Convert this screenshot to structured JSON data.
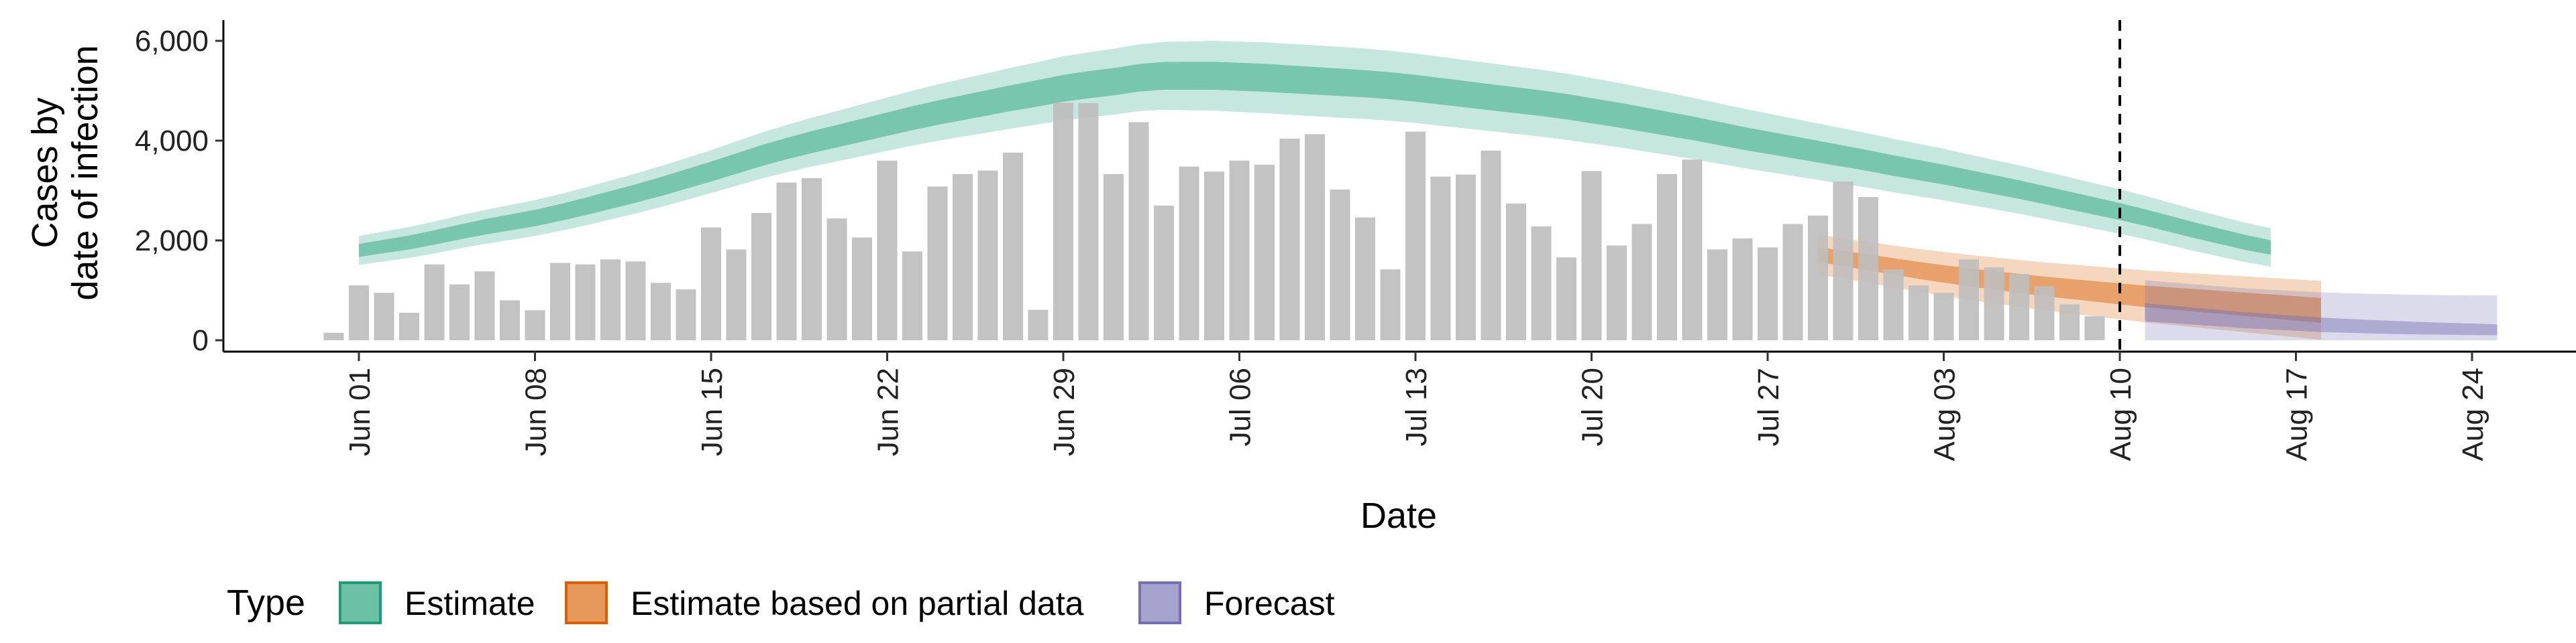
{
  "chart_data": {
    "type": "bar",
    "xlabel": "Date",
    "ylabel_lines": [
      "Cases by",
      "date of infection"
    ],
    "ylim": [
      0,
      6400
    ],
    "yticks": [
      0,
      2000,
      4000,
      6000
    ],
    "ytick_labels": [
      "0",
      "2,000",
      "4,000",
      "6,000"
    ],
    "x_range": [
      "2021-05-28",
      "2021-08-27"
    ],
    "xticks": [
      "2021-06-01",
      "2021-06-08",
      "2021-06-15",
      "2021-06-22",
      "2021-06-29",
      "2021-07-06",
      "2021-07-13",
      "2021-07-20",
      "2021-07-27",
      "2021-08-03",
      "2021-08-10",
      "2021-08-17",
      "2021-08-24"
    ],
    "xtick_labels": [
      "Jun 01",
      "Jun 08",
      "Jun 15",
      "Jun 22",
      "Jun 29",
      "Jul 06",
      "Jul 13",
      "Jul 20",
      "Jul 27",
      "Aug 03",
      "Aug 10",
      "Aug 17",
      "Aug 24"
    ],
    "vline_date": "2021-08-10",
    "bar_start_date": "2021-05-31",
    "bar_color": "#bebebe",
    "bars": [
      150,
      1100,
      950,
      550,
      1520,
      1120,
      1380,
      800,
      600,
      1550,
      1520,
      1620,
      1580,
      1150,
      1020,
      2260,
      1820,
      2550,
      3160,
      3250,
      2440,
      2060,
      3600,
      1780,
      3080,
      3330,
      3400,
      3760,
      610,
      4760,
      4750,
      3330,
      4370,
      2700,
      3480,
      3380,
      3600,
      3520,
      4040,
      4130,
      3020,
      2460,
      1420,
      4180,
      3280,
      3320,
      3800,
      2740,
      2280,
      1660,
      3390,
      1900,
      2330,
      3330,
      3620,
      1820,
      2040,
      1860,
      2330,
      2500,
      3180,
      2870,
      1420,
      1100,
      950,
      1620,
      1460,
      1330,
      1080,
      720,
      480
    ],
    "legend_title": "Type",
    "legend_position": "bottom",
    "series": [
      {
        "name": "Estimate",
        "color": "#1b9e77",
        "start_date": "2021-06-01",
        "median": [
          1800,
          1880,
          1960,
          2060,
          2170,
          2270,
          2360,
          2450,
          2560,
          2680,
          2810,
          2940,
          3080,
          3230,
          3380,
          3540,
          3700,
          3840,
          3970,
          4090,
          4210,
          4330,
          4450,
          4560,
          4660,
          4760,
          4860,
          4950,
          5050,
          5120,
          5180,
          5260,
          5300,
          5300,
          5300,
          5280,
          5260,
          5230,
          5200,
          5170,
          5140,
          5100,
          5050,
          4990,
          4930,
          4870,
          4810,
          4750,
          4680,
          4600,
          4520,
          4430,
          4340,
          4250,
          4150,
          4050,
          3960,
          3870,
          3780,
          3690,
          3600,
          3500,
          3410,
          3320,
          3220,
          3120,
          3020,
          2910,
          2800,
          2690,
          2580,
          2460,
          2330,
          2200,
          2080,
          1960,
          1860
        ],
        "inner_half": [
          130,
          135,
          140,
          145,
          150,
          155,
          160,
          165,
          170,
          175,
          180,
          185,
          190,
          195,
          200,
          205,
          210,
          215,
          220,
          225,
          230,
          235,
          240,
          245,
          250,
          255,
          260,
          265,
          270,
          272,
          274,
          276,
          278,
          280,
          280,
          280,
          280,
          278,
          276,
          274,
          272,
          270,
          268,
          266,
          264,
          262,
          260,
          258,
          255,
          252,
          250,
          246,
          242,
          238,
          234,
          230,
          226,
          222,
          218,
          214,
          210,
          206,
          202,
          198,
          194,
          190,
          186,
          182,
          178,
          174,
          170,
          166,
          162,
          158,
          154,
          150,
          146
        ],
        "outer_half": [
          290,
          300,
          310,
          320,
          330,
          340,
          350,
          360,
          370,
          380,
          390,
          400,
          410,
          420,
          430,
          445,
          460,
          475,
          490,
          505,
          520,
          535,
          550,
          565,
          580,
          595,
          610,
          625,
          640,
          650,
          660,
          670,
          680,
          690,
          700,
          705,
          710,
          710,
          710,
          710,
          705,
          700,
          695,
          690,
          685,
          680,
          675,
          670,
          665,
          655,
          645,
          635,
          625,
          615,
          605,
          595,
          585,
          575,
          565,
          555,
          545,
          535,
          525,
          515,
          505,
          495,
          485,
          475,
          465,
          455,
          445,
          435,
          425,
          415,
          405,
          395,
          385
        ]
      },
      {
        "name": "Estimate based on partial data",
        "color": "#d95f02",
        "start_date": "2021-07-29",
        "median": [
          1720,
          1640,
          1560,
          1480,
          1400,
          1330,
          1260,
          1200,
          1140,
          1080,
          1030,
          980,
          930,
          880,
          840,
          800,
          760,
          720,
          680,
          640,
          600
        ],
        "inner_half": [
          150,
          155,
          160,
          165,
          170,
          175,
          180,
          185,
          190,
          195,
          200,
          205,
          210,
          215,
          220,
          225,
          230,
          235,
          240,
          245,
          250
        ],
        "outer_half": [
          400,
          400,
          410,
          420,
          430,
          440,
          450,
          460,
          470,
          480,
          490,
          500,
          510,
          520,
          530,
          540,
          550,
          560,
          570,
          580,
          590
        ]
      },
      {
        "name": "Forecast",
        "color": "#7570b3",
        "start_date": "2021-08-11",
        "median": [
          560,
          520,
          480,
          440,
          400,
          370,
          340,
          310,
          290,
          270,
          255,
          240,
          230,
          220,
          210
        ],
        "inner_half": [
          180,
          175,
          170,
          165,
          160,
          155,
          150,
          145,
          140,
          135,
          130,
          125,
          120,
          115,
          110
        ],
        "outer_half": [
          640,
          640,
          640,
          640,
          640,
          640,
          645,
          650,
          655,
          660,
          665,
          670,
          675,
          680,
          685
        ]
      }
    ]
  }
}
